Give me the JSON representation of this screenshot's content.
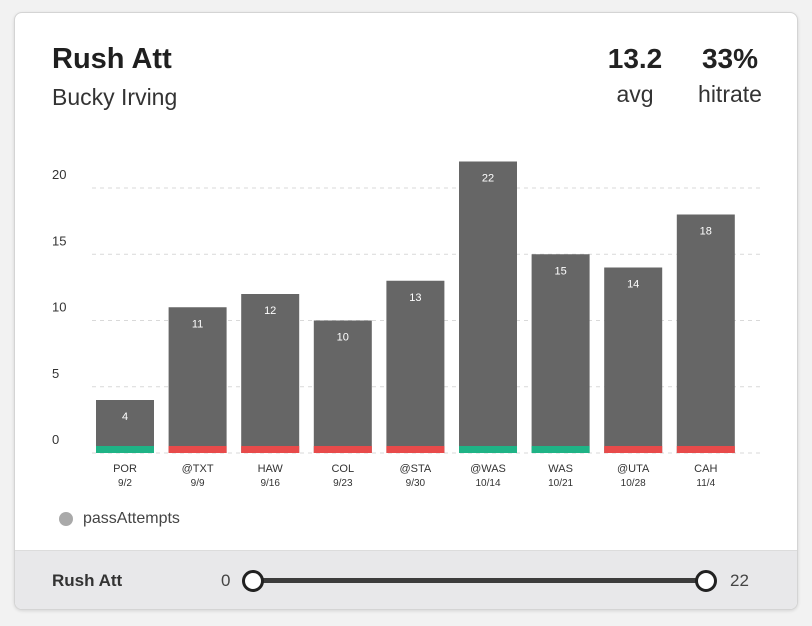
{
  "header": {
    "title": "Rush Att",
    "subtitle": "Bucky Irving",
    "avg_value": "13.2",
    "avg_label": "avg",
    "hitrate_value": "33%",
    "hitrate_label": "hitrate"
  },
  "legend": {
    "label": "passAttempts"
  },
  "footer": {
    "label": "Rush Att",
    "slider_min": "0",
    "slider_max": "22"
  },
  "colors": {
    "bar": "#666666",
    "hit": "#1fb386",
    "miss": "#e84a4a",
    "grid": "#d9d9d9"
  },
  "chart_data": {
    "type": "bar",
    "categories": [
      "POR",
      "@TXT",
      "HAW",
      "COL",
      "@STA",
      "@WAS",
      "WAS",
      "@UTA",
      "CAH"
    ],
    "dates": [
      "9/2",
      "9/9",
      "9/16",
      "9/23",
      "9/30",
      "10/14",
      "10/21",
      "10/28",
      "11/4"
    ],
    "values": [
      4,
      11,
      12,
      10,
      13,
      22,
      15,
      14,
      18
    ],
    "outcome": [
      "hit",
      "miss",
      "miss",
      "miss",
      "miss",
      "hit",
      "hit",
      "miss",
      "miss"
    ],
    "yticks": [
      0,
      5,
      10,
      15,
      20
    ],
    "ylim": [
      0,
      22
    ],
    "grid": true
  }
}
